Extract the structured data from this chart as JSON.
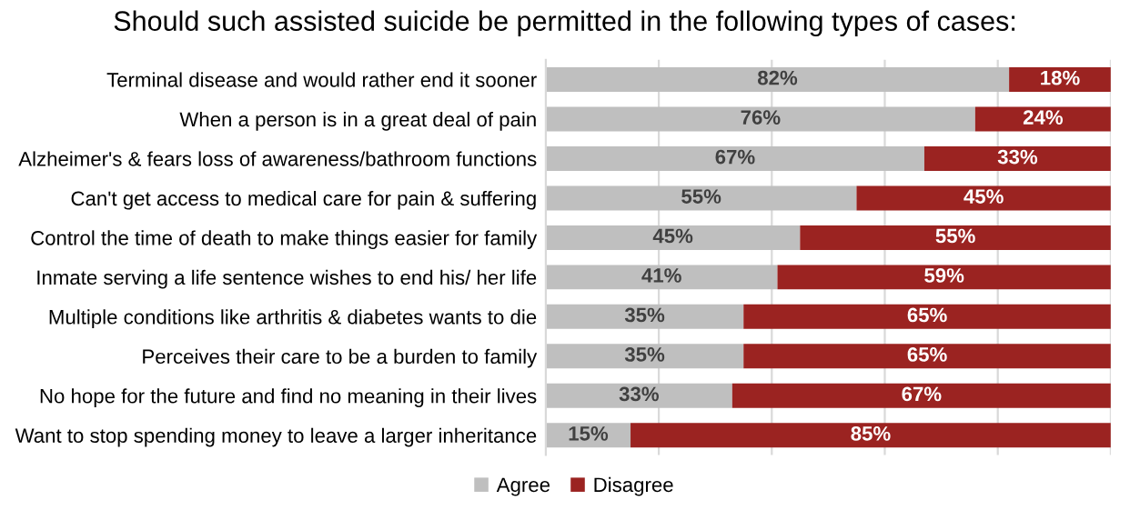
{
  "chart_data": {
    "type": "bar",
    "orientation": "horizontal",
    "stacked": true,
    "title": "Should such assisted suicide be permitted in the following types of cases:",
    "categories": [
      "Terminal disease and would rather end it sooner",
      "When a person is in a great deal of pain",
      "Alzheimer's & fears loss of awareness/bathroom functions",
      "Can't get access to medical care for pain & suffering",
      "Control the time of death to make things easier for family",
      "Inmate serving a life sentence wishes to end his/ her life",
      "Multiple conditions like arthritis & diabetes wants to die",
      "Perceives their care to be a burden to family",
      "No hope for the future and find no meaning in their lives",
      "Want to stop spending money to leave a larger inheritance"
    ],
    "series": [
      {
        "name": "Agree",
        "color": "#bfbfbf",
        "values": [
          82,
          76,
          67,
          55,
          45,
          41,
          35,
          35,
          33,
          15
        ],
        "value_labels": [
          "82%",
          "76%",
          "67%",
          "55%",
          "45%",
          "41%",
          "35%",
          "35%",
          "33%",
          "15%"
        ]
      },
      {
        "name": "Disagree",
        "color": "#9b2321",
        "values": [
          18,
          24,
          33,
          45,
          55,
          59,
          65,
          65,
          67,
          85
        ],
        "value_labels": [
          "18%",
          "24%",
          "33%",
          "45%",
          "55%",
          "59%",
          "65%",
          "65%",
          "67%",
          "85%"
        ]
      }
    ],
    "xlim": [
      0,
      100
    ],
    "xticks": [
      {
        "value": 0,
        "label": null
      },
      {
        "value": 20,
        "label": null
      },
      {
        "value": 40,
        "label": null
      },
      {
        "value": 60,
        "label": null
      },
      {
        "value": 80,
        "label": null
      },
      {
        "value": 100,
        "label": null
      }
    ],
    "tick_labels": "y",
    "grid": "x",
    "legend": "bottom"
  }
}
